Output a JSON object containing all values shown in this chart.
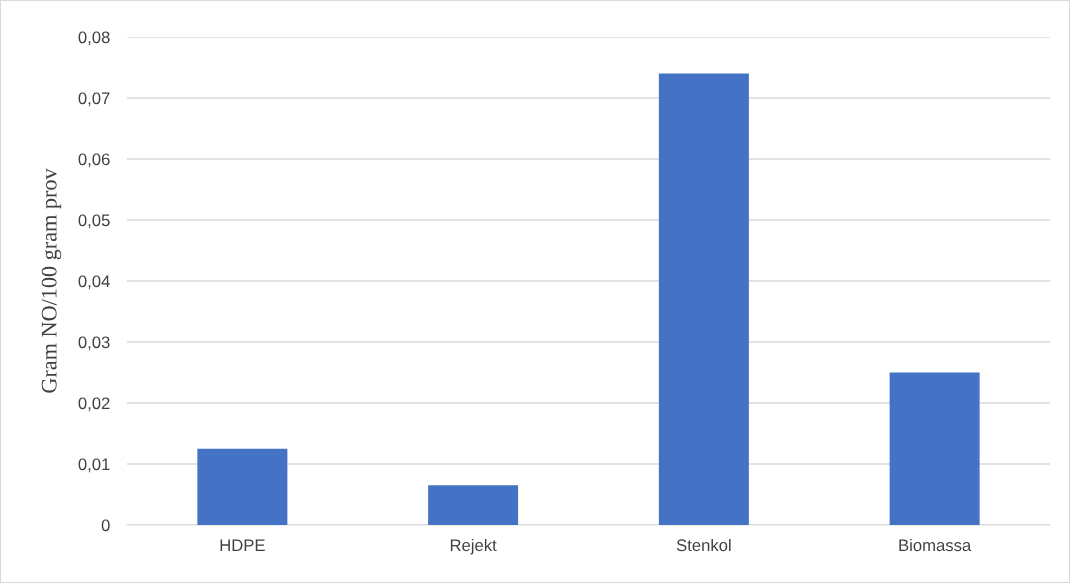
{
  "chart_data": {
    "type": "bar",
    "ylabel": "Gram NO/100 gram prov",
    "categories": [
      "HDPE",
      "Rejekt",
      "Stenkol",
      "Biomassa"
    ],
    "values": [
      0.0125,
      0.0065,
      0.074,
      0.025
    ],
    "color": "#4472c4",
    "ylim": [
      0,
      0.08
    ],
    "yticks": [
      0,
      {
        "value": 0.01,
        "label": "0,01"
      },
      {
        "value": 0.02,
        "label": "0,02"
      },
      {
        "value": 0.03,
        "label": "0,03"
      },
      {
        "value": 0.04,
        "label": "0,04"
      },
      {
        "value": 0.05,
        "label": "0,05"
      },
      {
        "value": 0.06,
        "label": "0,06"
      },
      {
        "value": 0.07,
        "label": "0,07"
      },
      {
        "value": 0.08,
        "label": "0,08"
      }
    ],
    "grid": "y"
  }
}
